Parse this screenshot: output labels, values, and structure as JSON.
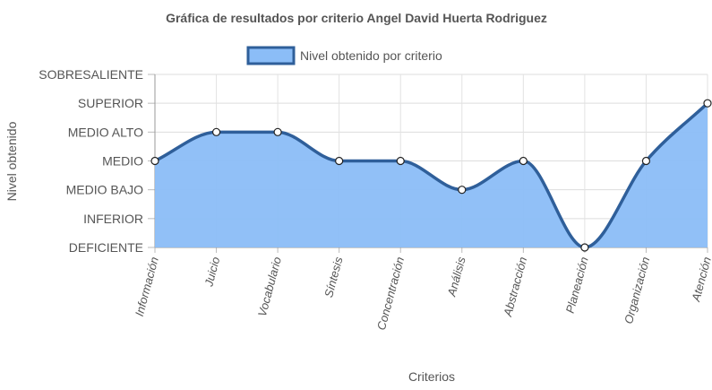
{
  "chart_data": {
    "type": "area",
    "title": "Gráfica de resultados por criterio Angel David Huerta Rodriguez",
    "xlabel": "Criterios",
    "ylabel": "Nivel obtenido",
    "y_levels": [
      "DEFICIENTE",
      "INFERIOR",
      "MEDIO BAJO",
      "MEDIO",
      "MEDIO ALTO",
      "SUPERIOR",
      "SOBRESALIENTE"
    ],
    "ylim": [
      0,
      6
    ],
    "grid": true,
    "legend_position": "top",
    "categories": [
      "Información",
      "Juicio",
      "Vocabulario",
      "Síntesis",
      "Concentración",
      "Análisis",
      "Abstracción",
      "Planeación",
      "Organización",
      "Atención"
    ],
    "series": [
      {
        "name": "Nivel obtenido por criterio",
        "values": [
          3,
          4,
          4,
          3,
          3,
          2,
          3,
          0,
          3,
          5
        ],
        "fill_color": "#8bbdf7",
        "line_color": "#2f5f9a"
      }
    ]
  }
}
